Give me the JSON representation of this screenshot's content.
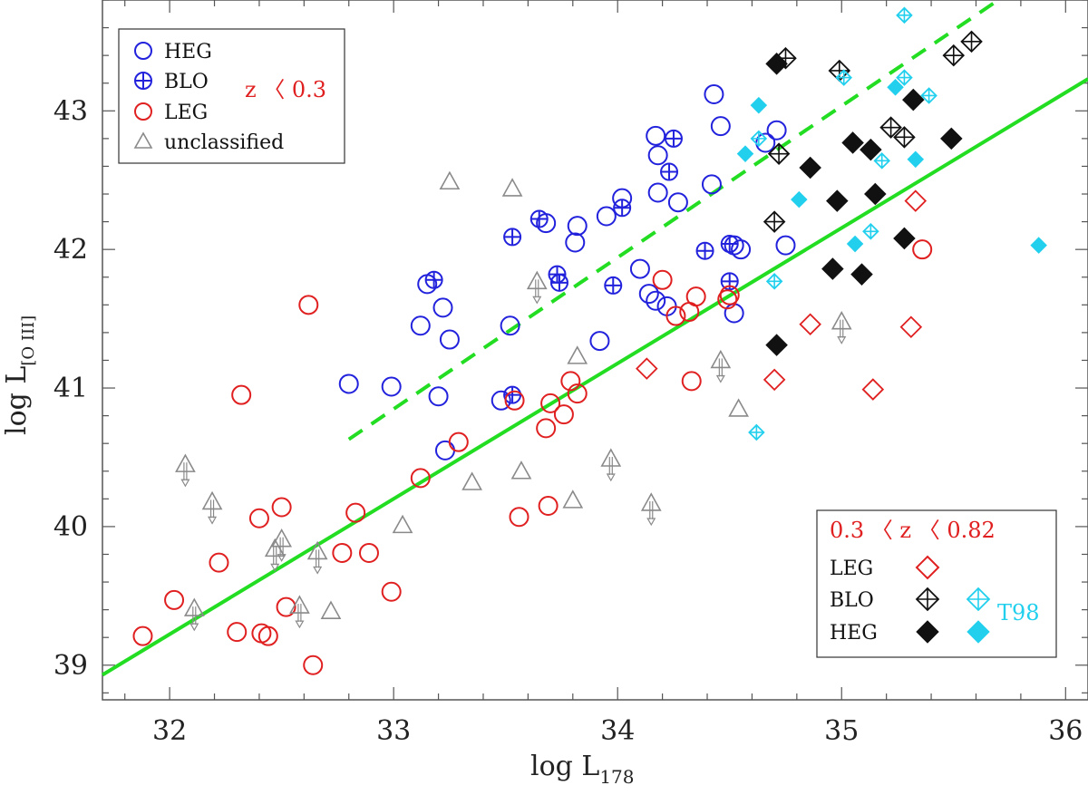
{
  "chart_data": {
    "type": "scatter",
    "title": "",
    "xlabel": "log  L",
    "xlabel_sub": "178",
    "ylabel": "log  L",
    "ylabel_sub": "[O III]",
    "xlim": [
      31.7,
      36.1
    ],
    "ylim": [
      38.75,
      43.8
    ],
    "xticks": [
      32,
      33,
      34,
      35,
      36
    ],
    "yticks": [
      39,
      40,
      41,
      42,
      43
    ],
    "xtick_labels": [
      "32",
      "33",
      "34",
      "35",
      "36"
    ],
    "ytick_labels": [
      "39",
      "40",
      "41",
      "42",
      "43"
    ],
    "lines": [
      {
        "name": "fit",
        "style": "solid",
        "color": "#22dd22",
        "x": [
          31.7,
          36.1
        ],
        "y": [
          38.93,
          43.23
        ]
      },
      {
        "name": "fit-offset",
        "style": "dashed",
        "color": "#22dd22",
        "x": [
          32.8,
          35.7
        ],
        "y": [
          40.63,
          43.8
        ]
      }
    ],
    "legend_low_z": {
      "label_z": "z 〈 0.3",
      "entries": [
        {
          "label": "HEG",
          "symbol": "circle",
          "color": "#2222dd"
        },
        {
          "label": "BLO",
          "symbol": "circle-plus",
          "color": "#2222dd"
        },
        {
          "label": "LEG",
          "symbol": "circle",
          "color": "#e02020"
        },
        {
          "label": "unclassified",
          "symbol": "triangle",
          "color": "#8a8a8a"
        }
      ]
    },
    "legend_high_z": {
      "title": "0.3 〈 z 〈 0.82",
      "rows": [
        "LEG",
        "BLO",
        "HEG"
      ],
      "t98_label": "T98"
    },
    "series": [
      {
        "name": "HEG z<0.3",
        "symbol": "circle",
        "color": "#2222dd",
        "points": [
          [
            32.8,
            41.03
          ],
          [
            32.99,
            41.01
          ],
          [
            33.12,
            41.45
          ],
          [
            33.15,
            41.75
          ],
          [
            33.2,
            40.94
          ],
          [
            33.22,
            41.58
          ],
          [
            33.23,
            40.55
          ],
          [
            33.25,
            41.35
          ],
          [
            33.48,
            40.91
          ],
          [
            33.52,
            41.45
          ],
          [
            33.68,
            42.19
          ],
          [
            33.81,
            42.05
          ],
          [
            33.82,
            42.17
          ],
          [
            33.92,
            41.34
          ],
          [
            33.95,
            42.24
          ],
          [
            34.02,
            42.37
          ],
          [
            34.1,
            41.86
          ],
          [
            34.14,
            41.68
          ],
          [
            34.17,
            41.63
          ],
          [
            34.17,
            42.82
          ],
          [
            34.18,
            42.68
          ],
          [
            34.18,
            42.41
          ],
          [
            34.22,
            41.59
          ],
          [
            34.27,
            42.34
          ],
          [
            34.42,
            42.47
          ],
          [
            34.43,
            43.12
          ],
          [
            34.46,
            42.89
          ],
          [
            34.52,
            42.03
          ],
          [
            34.55,
            42.0
          ],
          [
            34.52,
            41.54
          ],
          [
            34.66,
            42.77
          ],
          [
            34.71,
            42.86
          ],
          [
            34.75,
            42.03
          ]
        ]
      },
      {
        "name": "BLO z<0.3",
        "symbol": "circle-plus",
        "color": "#2222dd",
        "points": [
          [
            33.18,
            41.78
          ],
          [
            33.53,
            40.95
          ],
          [
            33.53,
            42.09
          ],
          [
            33.65,
            42.22
          ],
          [
            33.73,
            41.82
          ],
          [
            33.74,
            41.76
          ],
          [
            33.98,
            41.74
          ],
          [
            34.02,
            42.3
          ],
          [
            34.23,
            42.56
          ],
          [
            34.25,
            42.8
          ],
          [
            34.39,
            41.99
          ],
          [
            34.5,
            42.04
          ],
          [
            34.5,
            41.77
          ]
        ]
      },
      {
        "name": "LEG z<0.3",
        "symbol": "circle",
        "color": "#e02020",
        "points": [
          [
            31.88,
            39.21
          ],
          [
            32.02,
            39.47
          ],
          [
            32.22,
            39.74
          ],
          [
            32.3,
            39.24
          ],
          [
            32.32,
            40.95
          ],
          [
            32.4,
            40.06
          ],
          [
            32.41,
            39.23
          ],
          [
            32.44,
            39.21
          ],
          [
            32.5,
            40.14
          ],
          [
            32.52,
            39.42
          ],
          [
            32.62,
            41.6
          ],
          [
            32.64,
            39.0
          ],
          [
            32.77,
            39.81
          ],
          [
            32.83,
            40.1
          ],
          [
            32.89,
            39.81
          ],
          [
            32.99,
            39.53
          ],
          [
            33.12,
            40.35
          ],
          [
            33.29,
            40.61
          ],
          [
            33.54,
            40.91
          ],
          [
            33.56,
            40.07
          ],
          [
            33.68,
            40.71
          ],
          [
            33.69,
            40.15
          ],
          [
            33.7,
            40.89
          ],
          [
            33.76,
            40.81
          ],
          [
            33.79,
            41.05
          ],
          [
            33.82,
            40.96
          ],
          [
            34.2,
            41.78
          ],
          [
            34.26,
            41.52
          ],
          [
            34.32,
            41.55
          ],
          [
            34.35,
            41.66
          ],
          [
            34.33,
            41.05
          ],
          [
            34.49,
            41.64
          ],
          [
            34.5,
            41.67
          ],
          [
            35.36,
            42.0
          ]
        ]
      },
      {
        "name": "unclassified",
        "symbol": "triangle",
        "color": "#8a8a8a",
        "points": [
          [
            33.04,
            40.01
          ],
          [
            33.25,
            42.49
          ],
          [
            33.35,
            40.32
          ],
          [
            33.53,
            42.44
          ],
          [
            33.57,
            40.4
          ],
          [
            33.8,
            40.19
          ],
          [
            33.82,
            41.23
          ],
          [
            34.54,
            40.85
          ],
          [
            32.72,
            39.39
          ]
        ]
      },
      {
        "name": "unclassified upper limits",
        "symbol": "triangle-arrow",
        "color": "#8a8a8a",
        "points": [
          [
            32.07,
            40.45
          ],
          [
            32.11,
            39.41
          ],
          [
            32.19,
            40.18
          ],
          [
            32.47,
            39.84
          ],
          [
            32.5,
            39.91
          ],
          [
            32.58,
            39.43
          ],
          [
            32.66,
            39.82
          ],
          [
            33.64,
            41.77
          ],
          [
            33.97,
            40.49
          ],
          [
            34.15,
            40.17
          ],
          [
            34.46,
            41.2
          ],
          [
            35.0,
            41.48
          ]
        ]
      },
      {
        "name": "LEG 0.3<z<0.82",
        "symbol": "diamond-open",
        "color": "#e02020",
        "points": [
          [
            34.13,
            41.14
          ],
          [
            34.7,
            41.06
          ],
          [
            34.86,
            41.46
          ],
          [
            35.14,
            40.99
          ],
          [
            35.31,
            41.44
          ],
          [
            35.33,
            42.35
          ]
        ]
      },
      {
        "name": "BLO 0.3<z<0.82",
        "symbol": "diamond-plus",
        "color": "#111111",
        "points": [
          [
            34.7,
            42.2
          ],
          [
            34.72,
            42.69
          ],
          [
            34.75,
            43.38
          ],
          [
            34.99,
            43.29
          ],
          [
            35.22,
            42.88
          ],
          [
            35.28,
            42.81
          ],
          [
            35.5,
            43.4
          ],
          [
            35.58,
            43.5
          ]
        ]
      },
      {
        "name": "HEG 0.3<z<0.82",
        "symbol": "diamond-filled",
        "color": "#111111",
        "points": [
          [
            34.71,
            43.34
          ],
          [
            34.71,
            41.31
          ],
          [
            34.86,
            42.59
          ],
          [
            34.96,
            41.86
          ],
          [
            34.98,
            42.35
          ],
          [
            35.05,
            42.77
          ],
          [
            35.09,
            41.82
          ],
          [
            35.13,
            42.72
          ],
          [
            35.15,
            42.4
          ],
          [
            35.28,
            42.08
          ],
          [
            35.32,
            43.08
          ],
          [
            35.49,
            42.8
          ]
        ]
      },
      {
        "name": "T98 BLO",
        "symbol": "diamond-plus",
        "color": "#22d0ee",
        "points": [
          [
            34.62,
            40.68
          ],
          [
            34.63,
            42.8
          ],
          [
            34.7,
            41.77
          ],
          [
            35.01,
            43.24
          ],
          [
            35.13,
            42.13
          ],
          [
            35.18,
            42.64
          ],
          [
            35.28,
            43.69
          ],
          [
            35.28,
            43.24
          ],
          [
            35.39,
            43.11
          ]
        ]
      },
      {
        "name": "T98 HEG",
        "symbol": "diamond-filled",
        "color": "#22d0ee",
        "points": [
          [
            34.57,
            42.69
          ],
          [
            34.63,
            43.04
          ],
          [
            34.81,
            42.36
          ],
          [
            35.06,
            42.04
          ],
          [
            35.24,
            43.17
          ],
          [
            35.33,
            42.65
          ],
          [
            35.88,
            42.03
          ]
        ]
      }
    ]
  }
}
